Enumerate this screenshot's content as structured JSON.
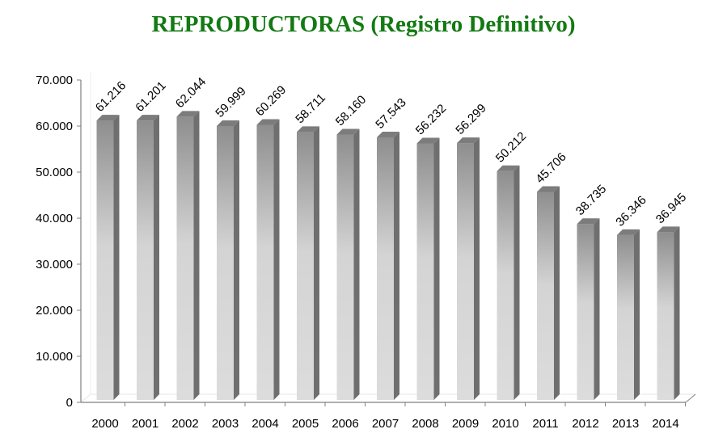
{
  "chart_data": {
    "type": "bar",
    "title": "REPRODUCTORAS (Registro Definitivo)",
    "xlabel": "",
    "ylabel": "",
    "categories": [
      "2000",
      "2001",
      "2002",
      "2003",
      "2004",
      "2005",
      "2006",
      "2007",
      "2008",
      "2009",
      "2010",
      "2011",
      "2012",
      "2013",
      "2014"
    ],
    "values": [
      61216,
      61201,
      62044,
      59999,
      60269,
      58711,
      58160,
      57543,
      56232,
      56299,
      50212,
      45706,
      38735,
      36346,
      36945
    ],
    "data_labels": [
      "61.216",
      "61.201",
      "62.044",
      "59.999",
      "60.269",
      "58.711",
      "58.160",
      "57.543",
      "56.232",
      "56.299",
      "50.212",
      "45.706",
      "38.735",
      "36.346",
      "36.945"
    ],
    "ylim": [
      0,
      70000
    ],
    "yticks": [
      0,
      10000,
      20000,
      30000,
      40000,
      50000,
      60000,
      70000
    ],
    "ytick_labels": [
      "0",
      "10.000",
      "20.000",
      "30.000",
      "40.000",
      "50.000",
      "60.000",
      "70.000"
    ],
    "grid": false,
    "style": "3d-column",
    "colors": {
      "title": "#137a13",
      "bar_light": "#e2e2e2",
      "bar_dark": "#8a8a8a",
      "bar_side": "#6e6e6e"
    }
  }
}
